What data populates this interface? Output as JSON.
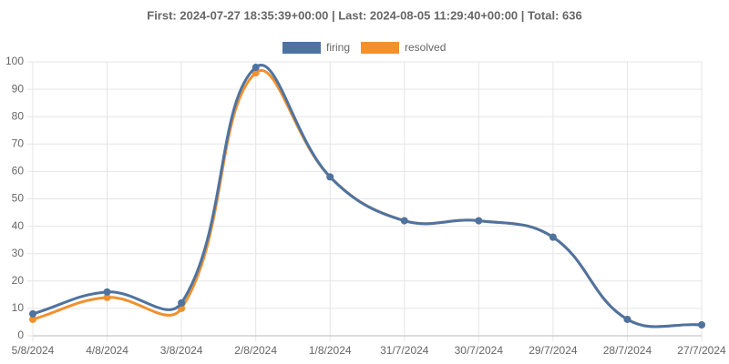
{
  "chart_data": {
    "type": "line",
    "title": "First: 2024-07-27 18:35:39+00:00 | Last: 2024-08-05 11:29:40+00:00 | Total: 636",
    "categories": [
      "5/8/2024",
      "4/8/2024",
      "3/8/2024",
      "2/8/2024",
      "1/8/2024",
      "31/7/2024",
      "30/7/2024",
      "29/7/2024",
      "28/7/2024",
      "27/7/2024"
    ],
    "series": [
      {
        "name": "firing",
        "color": "#4e73a0",
        "values": [
          8,
          16,
          12,
          98,
          58,
          42,
          42,
          36,
          6,
          4
        ]
      },
      {
        "name": "resolved",
        "color": "#f0912e",
        "values": [
          6,
          14,
          10,
          96,
          58,
          42,
          42,
          36,
          6,
          4
        ]
      }
    ],
    "ylim": [
      0,
      100
    ],
    "yticks": [
      0,
      10,
      20,
      30,
      40,
      50,
      60,
      70,
      80,
      90,
      100
    ],
    "grid": true,
    "legend": "top"
  }
}
